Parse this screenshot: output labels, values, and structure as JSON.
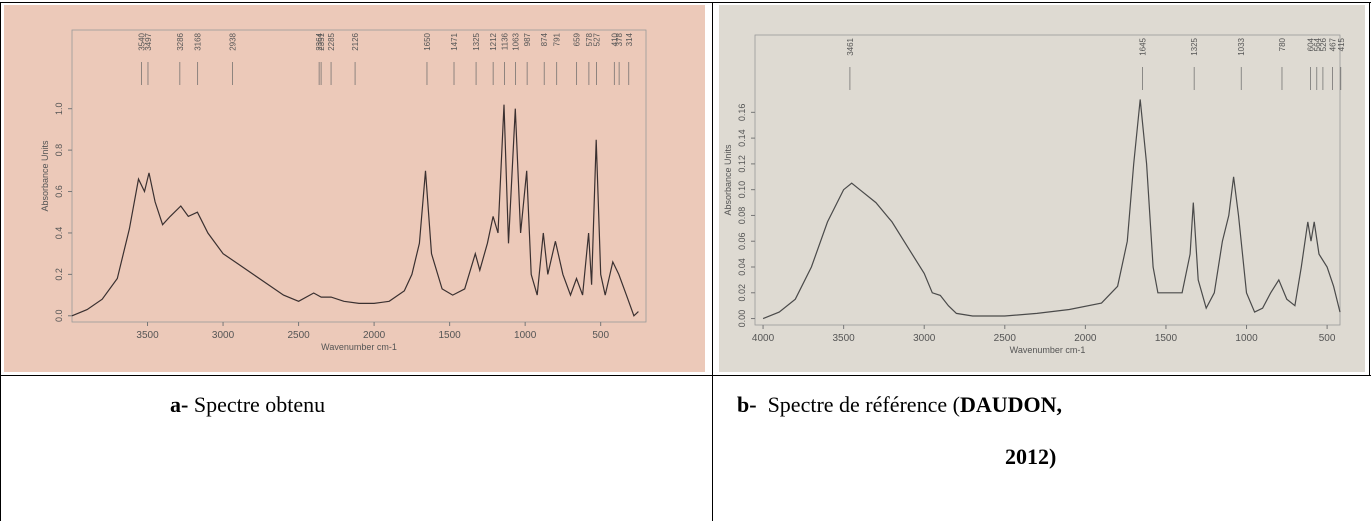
{
  "chart_data": [
    {
      "type": "line",
      "x_label": "Wavenumber cm-1",
      "y_label": "Absorbance Units",
      "color": "#3a3030",
      "background": "#ecc9b9",
      "xlim": [
        4000,
        200
      ],
      "ylim": [
        -0.03,
        1.38
      ],
      "xticks": [
        3500,
        3000,
        2500,
        2000,
        1500,
        1000,
        500
      ],
      "yticks": [
        {
          "value": 0,
          "label": "0.0"
        },
        0.2,
        0.4,
        0.6,
        0.8,
        {
          "value": 1,
          "label": "1.0"
        }
      ],
      "peaks": [
        3540,
        3497,
        3286,
        3168,
        2938,
        2364,
        2351,
        2285,
        2126,
        1650,
        1471,
        1325,
        1212,
        1136,
        1063,
        987,
        874,
        791,
        659,
        578,
        527,
        410,
        378,
        314
      ],
      "x": [
        4000,
        3900,
        3800,
        3700,
        3620,
        3560,
        3520,
        3490,
        3450,
        3400,
        3350,
        3280,
        3230,
        3170,
        3100,
        3000,
        2900,
        2800,
        2700,
        2600,
        2500,
        2400,
        2350,
        2285,
        2200,
        2100,
        2000,
        1900,
        1800,
        1750,
        1700,
        1660,
        1620,
        1550,
        1480,
        1400,
        1330,
        1300,
        1250,
        1212,
        1180,
        1140,
        1110,
        1065,
        1030,
        990,
        960,
        920,
        880,
        850,
        800,
        750,
        700,
        660,
        620,
        580,
        560,
        530,
        500,
        470,
        420,
        380,
        330,
        280,
        250
      ],
      "values": [
        0.0,
        0.03,
        0.08,
        0.18,
        0.42,
        0.66,
        0.6,
        0.69,
        0.55,
        0.44,
        0.48,
        0.53,
        0.48,
        0.5,
        0.4,
        0.3,
        0.25,
        0.2,
        0.15,
        0.1,
        0.07,
        0.11,
        0.09,
        0.09,
        0.07,
        0.06,
        0.06,
        0.07,
        0.12,
        0.2,
        0.35,
        0.7,
        0.3,
        0.13,
        0.1,
        0.13,
        0.3,
        0.22,
        0.35,
        0.48,
        0.4,
        1.02,
        0.35,
        1.0,
        0.4,
        0.7,
        0.2,
        0.1,
        0.4,
        0.2,
        0.36,
        0.2,
        0.1,
        0.18,
        0.1,
        0.4,
        0.15,
        0.85,
        0.2,
        0.1,
        0.26,
        0.2,
        0.1,
        0.0,
        0.02
      ]
    },
    {
      "type": "line",
      "x_label": "Wavenumber cm-1",
      "y_label": "Absorbance Units",
      "color": "#4a4a4a",
      "background": "#dedad2",
      "xlim": [
        4050,
        420
      ],
      "ylim": [
        -0.005,
        0.22
      ],
      "xticks": [
        4000,
        3500,
        3000,
        2500,
        2000,
        1500,
        1000,
        500
      ],
      "yticks": [
        {
          "value": 0,
          "label": "0.00"
        },
        {
          "value": 0.02,
          "label": "0.02"
        },
        {
          "value": 0.04,
          "label": "0.04"
        },
        {
          "value": 0.06,
          "label": "0.06"
        },
        {
          "value": 0.08,
          "label": "0.08"
        },
        {
          "value": 0.1,
          "label": "0.10"
        },
        {
          "value": 0.12,
          "label": "0.12"
        },
        {
          "value": 0.14,
          "label": "0.14"
        },
        {
          "value": 0.16,
          "label": "0.16"
        }
      ],
      "peaks": [
        3461,
        1645,
        1325,
        1033,
        780,
        604,
        564,
        526,
        467,
        415
      ],
      "x": [
        4000,
        3900,
        3800,
        3700,
        3600,
        3500,
        3450,
        3400,
        3300,
        3200,
        3100,
        3000,
        2950,
        2900,
        2850,
        2800,
        2700,
        2500,
        2300,
        2100,
        1900,
        1800,
        1740,
        1700,
        1660,
        1620,
        1580,
        1550,
        1500,
        1400,
        1350,
        1330,
        1300,
        1250,
        1200,
        1150,
        1110,
        1080,
        1050,
        1000,
        950,
        900,
        850,
        800,
        750,
        700,
        660,
        620,
        600,
        580,
        550,
        500,
        460,
        420
      ],
      "values": [
        0.0,
        0.005,
        0.015,
        0.04,
        0.075,
        0.1,
        0.105,
        0.1,
        0.09,
        0.075,
        0.055,
        0.035,
        0.02,
        0.018,
        0.01,
        0.004,
        0.002,
        0.002,
        0.004,
        0.007,
        0.012,
        0.025,
        0.06,
        0.12,
        0.17,
        0.12,
        0.04,
        0.02,
        0.02,
        0.02,
        0.05,
        0.09,
        0.03,
        0.008,
        0.02,
        0.06,
        0.08,
        0.11,
        0.08,
        0.02,
        0.005,
        0.008,
        0.02,
        0.03,
        0.015,
        0.01,
        0.04,
        0.075,
        0.06,
        0.075,
        0.05,
        0.04,
        0.025,
        0.005
      ]
    }
  ],
  "captions": [
    {
      "label": "a-",
      "text": "Spectre obtenu"
    },
    {
      "label": "b-",
      "text": "Spectre de référence (",
      "reference": "DAUDON,",
      "year": "2012)"
    }
  ]
}
